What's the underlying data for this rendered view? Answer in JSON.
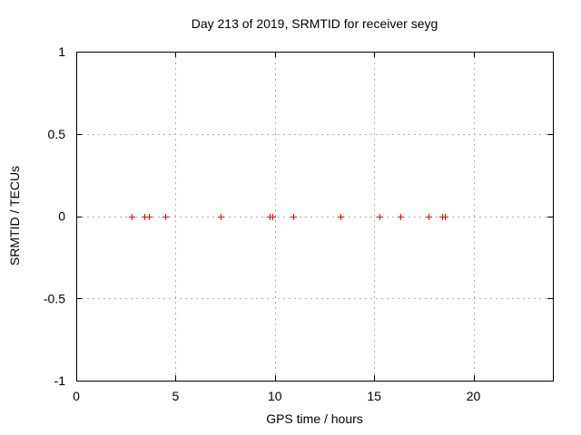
{
  "chart_data": {
    "type": "scatter",
    "title": "Day 213 of 2019, SRMTID for receiver seyg",
    "xlabel": "GPS time / hours",
    "ylabel": "SRMTID / TECUs",
    "xlim": [
      0,
      24
    ],
    "ylim": [
      -1,
      1
    ],
    "xticks": [
      0,
      5,
      10,
      15,
      20
    ],
    "xtick_labels": [
      "0",
      "5",
      "10",
      "15",
      "20"
    ],
    "yticks": [
      -1,
      -0.5,
      0,
      0.5,
      1
    ],
    "ytick_labels": [
      "-1",
      "-0.5",
      "0",
      "0.5",
      "1"
    ],
    "grid": true,
    "legend_position": "none",
    "marker": "plus",
    "marker_color": "#ff0000",
    "grid_color": "#b0b0b0",
    "axis_color": "#000000",
    "background_color": "#ffffff",
    "series": [
      {
        "name": "SRMTID",
        "x": [
          2.79,
          3.43,
          3.66,
          4.49,
          7.28,
          9.74,
          9.86,
          10.91,
          13.29,
          15.28,
          16.32,
          17.75,
          18.41,
          18.56
        ],
        "y": [
          0,
          0,
          0,
          0,
          0,
          0,
          0,
          0,
          0,
          0,
          0,
          0,
          0,
          0
        ]
      }
    ]
  }
}
